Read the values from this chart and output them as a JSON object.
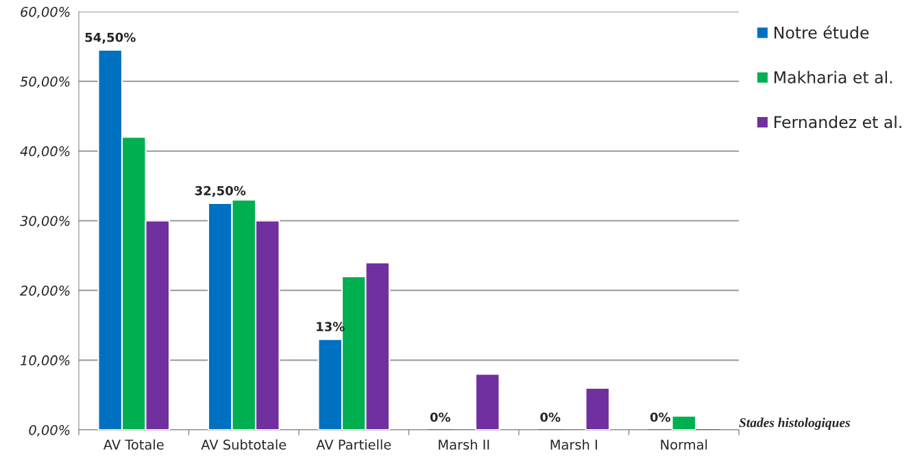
{
  "chart_data": {
    "type": "bar",
    "xlabel": "Stades histologiques",
    "categories": [
      "AV Totale",
      "AV Subtotale",
      "AV Partielle",
      "Marsh II",
      "Marsh I",
      "Normal"
    ],
    "series": [
      {
        "name": "Notre étude",
        "color": "#0070c0",
        "values": [
          54.5,
          32.5,
          13,
          0,
          0,
          0
        ],
        "value_labels": [
          "54,50%",
          "32,50%",
          "13%",
          "0%",
          "0%",
          "0%"
        ]
      },
      {
        "name": "Makharia et al.",
        "color": "#00b050",
        "values": [
          42,
          33,
          22,
          0,
          0,
          2
        ]
      },
      {
        "name": "Fernandez et al.",
        "color": "#7030a0",
        "values": [
          30,
          30,
          24,
          8,
          6,
          0
        ]
      }
    ],
    "ylim": [
      0,
      60
    ],
    "yticks": [
      {
        "value": 0,
        "label": "0,00%"
      },
      {
        "value": 10,
        "label": "10,00%"
      },
      {
        "value": 20,
        "label": "20,00%"
      },
      {
        "value": 30,
        "label": "30,00%"
      },
      {
        "value": 40,
        "label": "40,00%"
      },
      {
        "value": 50,
        "label": "50,00%"
      },
      {
        "value": 60,
        "label": "60,00%"
      }
    ],
    "grid": "y",
    "legend": "right"
  }
}
